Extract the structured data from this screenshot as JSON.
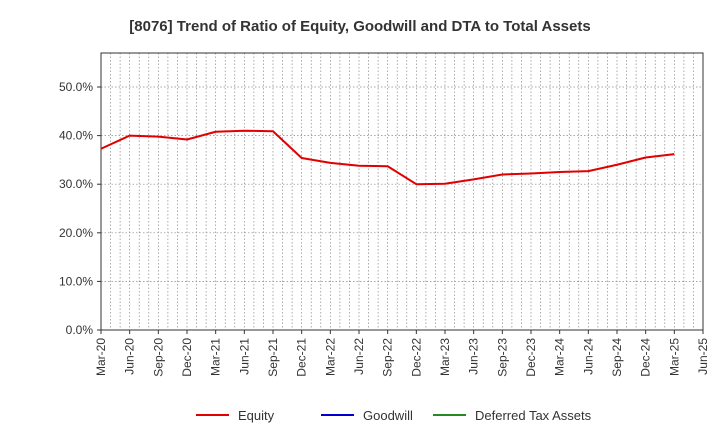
{
  "chart_data": {
    "type": "line",
    "title": "[8076]  Trend of Ratio of Equity, Goodwill and DTA to Total Assets",
    "xlabel": "",
    "ylabel": "",
    "ylim": [
      0,
      0.57
    ],
    "yticks": [
      0,
      0.1,
      0.2,
      0.3,
      0.4,
      0.5
    ],
    "ytick_labels": [
      "0.0%",
      "10.0%",
      "20.0%",
      "30.0%",
      "40.0%",
      "50.0%"
    ],
    "x_labels": [
      "Mar-20",
      "Jun-20",
      "Sep-20",
      "Dec-20",
      "Mar-21",
      "Jun-21",
      "Sep-21",
      "Dec-21",
      "Mar-22",
      "Jun-22",
      "Sep-22",
      "Dec-22",
      "Mar-23",
      "Jun-23",
      "Sep-23",
      "Dec-23",
      "Mar-24",
      "Jun-24",
      "Sep-24",
      "Dec-24",
      "Mar-25",
      "Jun-25"
    ],
    "grid": true,
    "legend_position": "bottom",
    "series": [
      {
        "name": "Equity",
        "color": "#e00000",
        "values": [
          0.373,
          0.4,
          0.398,
          0.392,
          0.408,
          0.41,
          0.409,
          0.354,
          0.344,
          0.338,
          0.337,
          0.3,
          0.301,
          0.31,
          0.32,
          0.322,
          0.325,
          0.327,
          0.34,
          0.355,
          0.362,
          null
        ]
      },
      {
        "name": "Goodwill",
        "color": "#0000cc",
        "values": []
      },
      {
        "name": "Deferred Tax Assets",
        "color": "#228B22",
        "values": []
      }
    ]
  }
}
